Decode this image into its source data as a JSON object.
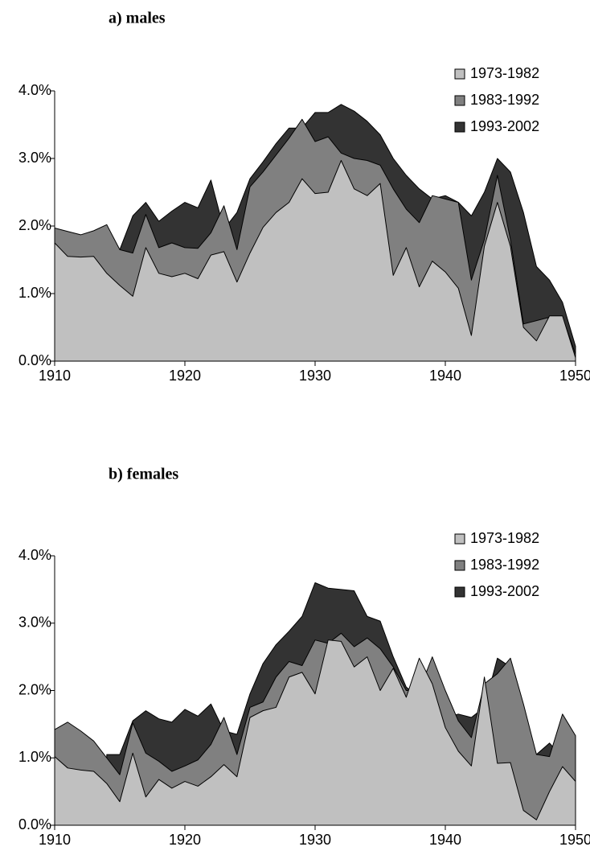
{
  "chart_data": [
    {
      "type": "area",
      "title": "a) males",
      "x": [
        1910,
        1911,
        1912,
        1913,
        1914,
        1915,
        1916,
        1917,
        1918,
        1919,
        1920,
        1921,
        1922,
        1923,
        1924,
        1925,
        1926,
        1927,
        1928,
        1929,
        1930,
        1931,
        1932,
        1933,
        1934,
        1935,
        1936,
        1937,
        1938,
        1939,
        1940,
        1941,
        1942,
        1943,
        1944,
        1945,
        1946,
        1947,
        1948,
        1949,
        1950
      ],
      "series": [
        {
          "name": "1973-1982",
          "color": "#c0c0c0",
          "values": [
            1.75,
            1.55,
            1.54,
            1.55,
            1.3,
            1.12,
            0.96,
            1.68,
            1.3,
            1.25,
            1.3,
            1.22,
            1.57,
            1.62,
            1.17,
            1.6,
            1.98,
            2.2,
            2.35,
            2.7,
            2.48,
            2.5,
            2.97,
            2.55,
            2.45,
            2.63,
            1.27,
            1.68,
            1.1,
            1.48,
            1.32,
            1.08,
            0.38,
            1.7,
            2.35,
            1.7,
            0.5,
            0.3,
            0.67,
            0.67,
            0.05
          ]
        },
        {
          "name": "1983-1992",
          "color": "#808080",
          "values": [
            1.97,
            1.92,
            1.87,
            1.93,
            2.02,
            1.65,
            1.6,
            2.17,
            1.68,
            1.75,
            1.68,
            1.67,
            1.9,
            2.3,
            1.65,
            2.58,
            2.8,
            3.05,
            3.3,
            3.58,
            3.25,
            3.32,
            3.08,
            3.0,
            2.97,
            2.9,
            2.55,
            2.25,
            2.05,
            2.45,
            2.4,
            2.35,
            1.2,
            1.8,
            2.75,
            1.8,
            0.55,
            0.6,
            0.65,
            0.65,
            0.1
          ]
        },
        {
          "name": "1993-2002",
          "color": "#333333",
          "values": [
            null,
            null,
            null,
            null,
            null,
            1.65,
            2.15,
            2.35,
            2.07,
            2.22,
            2.35,
            2.27,
            2.68,
            1.95,
            2.2,
            2.7,
            2.95,
            3.22,
            3.45,
            3.45,
            3.68,
            3.68,
            3.8,
            3.7,
            3.55,
            3.35,
            3.0,
            2.75,
            2.55,
            2.4,
            2.45,
            2.35,
            2.15,
            2.5,
            3.0,
            2.8,
            2.2,
            1.4,
            1.2,
            0.87,
            0.22
          ]
        }
      ],
      "xlim": [
        1910,
        1950
      ],
      "xticks": [
        1910,
        1920,
        1930,
        1940,
        1950
      ],
      "ylim": [
        0,
        4
      ],
      "yticks": [
        {
          "value": 0,
          "label": "0.0%"
        },
        {
          "value": 1,
          "label": "1.0%"
        },
        {
          "value": 2,
          "label": "2.0%"
        },
        {
          "value": 3,
          "label": "3.0%"
        },
        {
          "value": 4,
          "label": "4.0%"
        }
      ],
      "legend": "upper right"
    },
    {
      "type": "area",
      "title": "b) females",
      "x": [
        1910,
        1911,
        1912,
        1913,
        1914,
        1915,
        1916,
        1917,
        1918,
        1919,
        1920,
        1921,
        1922,
        1923,
        1924,
        1925,
        1926,
        1927,
        1928,
        1929,
        1930,
        1931,
        1932,
        1933,
        1934,
        1935,
        1936,
        1937,
        1938,
        1939,
        1940,
        1941,
        1942,
        1943,
        1944,
        1945,
        1946,
        1947,
        1948,
        1949,
        1950
      ],
      "series": [
        {
          "name": "1973-1982",
          "color": "#c0c0c0",
          "values": [
            1.02,
            0.85,
            0.82,
            0.8,
            0.62,
            0.35,
            1.07,
            0.42,
            0.68,
            0.55,
            0.65,
            0.58,
            0.72,
            0.9,
            0.72,
            1.6,
            1.7,
            1.75,
            2.2,
            2.27,
            1.95,
            2.75,
            2.73,
            2.35,
            2.5,
            2.0,
            2.33,
            1.9,
            2.48,
            2.1,
            1.45,
            1.1,
            0.88,
            2.2,
            0.92,
            0.93,
            0.22,
            0.08,
            0.5,
            0.87,
            0.65
          ]
        },
        {
          "name": "1983-1992",
          "color": "#808080",
          "values": [
            1.42,
            1.53,
            1.4,
            1.25,
            1.0,
            0.75,
            1.52,
            1.07,
            0.95,
            0.8,
            0.88,
            0.97,
            1.2,
            1.6,
            1.05,
            1.75,
            1.83,
            2.2,
            2.43,
            2.37,
            2.75,
            2.7,
            2.85,
            2.65,
            2.78,
            2.62,
            2.35,
            2.0,
            2.0,
            2.5,
            2.0,
            1.55,
            1.3,
            2.1,
            2.25,
            2.48,
            1.8,
            1.05,
            1.02,
            1.65,
            1.33
          ]
        },
        {
          "name": "1993-2002",
          "color": "#333333",
          "values": [
            null,
            null,
            null,
            null,
            1.05,
            1.05,
            1.55,
            1.7,
            1.58,
            1.53,
            1.72,
            1.62,
            1.8,
            1.4,
            1.35,
            1.95,
            2.4,
            2.68,
            2.88,
            3.1,
            3.6,
            3.52,
            3.5,
            3.48,
            3.1,
            3.03,
            2.5,
            2.05,
            1.9,
            1.8,
            1.6,
            1.65,
            1.6,
            1.75,
            2.48,
            2.35,
            1.7,
            1.05,
            1.22,
            1.0,
            0.8
          ]
        }
      ],
      "xlim": [
        1910,
        1950
      ],
      "xticks": [
        1910,
        1920,
        1930,
        1940,
        1950
      ],
      "ylim": [
        0,
        4
      ],
      "yticks": [
        {
          "value": 0,
          "label": "0.0%"
        },
        {
          "value": 1,
          "label": "1.0%"
        },
        {
          "value": 2,
          "label": "2.0%"
        },
        {
          "value": 3,
          "label": "3.0%"
        },
        {
          "value": 4,
          "label": "4.0%"
        }
      ],
      "legend": "upper right"
    }
  ]
}
